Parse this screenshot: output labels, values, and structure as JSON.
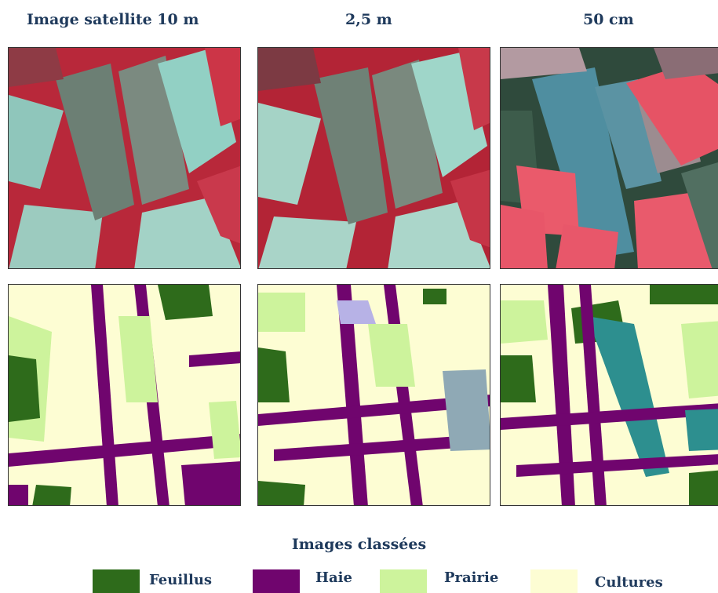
{
  "columns": {
    "c1": "Image satellite  10 m",
    "c2": "2,5 m",
    "c3": "50 cm"
  },
  "section_title": "Images classées",
  "legend": {
    "feuillus": {
      "label": "Feuillus",
      "color": "#2e6b1b"
    },
    "haie": {
      "label": "Haie",
      "color": "#70056e"
    },
    "prairie": {
      "label": "Prairie",
      "color": "#cdf39c"
    },
    "cultures": {
      "label": "Cultures",
      "color": "#fdfdd3"
    }
  }
}
